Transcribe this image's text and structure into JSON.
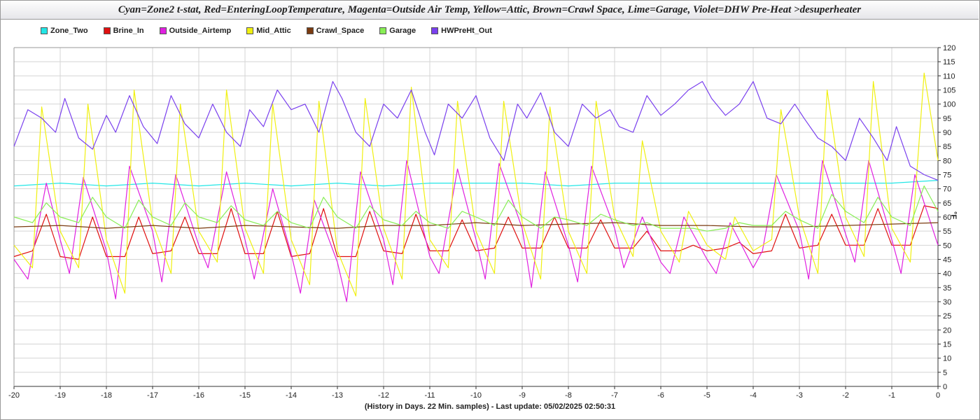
{
  "title": "Cyan=Zone2 t-stat, Red=EnteringLoopTemperature, Magenta=Outside Air Temp, Yellow=Attic, Brown=Crawl Space, Lime=Garage, Violet=DHW Pre-Heat >desuperheater",
  "xlabel": "(History in Days. 22 Min. samples) - Last update: 05/02/2025 02:50:31",
  "ylabel": "°F",
  "chart_data": {
    "type": "line",
    "xlim": [
      -20,
      0
    ],
    "ylim": [
      0,
      120
    ],
    "x_ticks": [
      -20,
      -19,
      -18,
      -17,
      -16,
      -15,
      -14,
      -13,
      -12,
      -11,
      -10,
      -9,
      -8,
      -7,
      -6,
      -5,
      -4,
      -3,
      -2,
      -1,
      0
    ],
    "y_ticks": [
      0,
      5,
      10,
      15,
      20,
      25,
      30,
      35,
      40,
      45,
      50,
      55,
      60,
      65,
      70,
      75,
      80,
      85,
      90,
      95,
      100,
      105,
      110,
      115,
      120
    ],
    "grid": true,
    "legend_position": "top-left",
    "series": [
      {
        "name": "Zone_Two",
        "color": "#22e6e6",
        "x": [
          -20,
          -19,
          -18,
          -17,
          -16,
          -15,
          -14,
          -13,
          -12,
          -11,
          -10,
          -9,
          -8,
          -7,
          -6,
          -5,
          -4,
          -3,
          -2,
          -1,
          0
        ],
        "y": [
          71,
          72,
          71,
          72,
          71,
          72,
          71,
          72,
          71,
          72,
          72,
          72,
          71,
          72,
          72,
          72,
          72,
          72,
          72,
          72,
          73
        ]
      },
      {
        "name": "Brine_In",
        "color": "#e01010",
        "x": [
          -20,
          -19.6,
          -19.3,
          -19,
          -18.6,
          -18.3,
          -18,
          -17.6,
          -17.3,
          -17,
          -16.6,
          -16.3,
          -16,
          -15.6,
          -15.3,
          -15,
          -14.6,
          -14.3,
          -14,
          -13.6,
          -13.3,
          -13,
          -12.6,
          -12.3,
          -12,
          -11.6,
          -11.3,
          -11,
          -10.6,
          -10.3,
          -10,
          -9.6,
          -9.3,
          -9,
          -8.6,
          -8.3,
          -8,
          -7.6,
          -7.3,
          -7,
          -6.6,
          -6.3,
          -6,
          -5.6,
          -5.3,
          -5,
          -4.6,
          -4.3,
          -4,
          -3.6,
          -3.3,
          -3,
          -2.6,
          -2.3,
          -2,
          -1.6,
          -1.3,
          -1,
          -0.6,
          -0.3,
          0
        ],
        "y": [
          46,
          48,
          61,
          46,
          45,
          60,
          46,
          46,
          60,
          47,
          48,
          60,
          47,
          47,
          63,
          47,
          47,
          62,
          46,
          47,
          63,
          46,
          46,
          62,
          48,
          47,
          61,
          48,
          48,
          59,
          48,
          49,
          60,
          49,
          49,
          60,
          49,
          49,
          59,
          49,
          49,
          55,
          48,
          48,
          50,
          48,
          49,
          51,
          47,
          48,
          61,
          49,
          50,
          61,
          50,
          50,
          63,
          50,
          50,
          64,
          63
        ]
      },
      {
        "name": "Outside_Airtemp",
        "color": "#e020e0",
        "x": [
          -20,
          -19.7,
          -19.3,
          -19,
          -18.8,
          -18.5,
          -18,
          -17.8,
          -17.5,
          -17,
          -16.8,
          -16.5,
          -16,
          -15.8,
          -15.4,
          -15,
          -14.8,
          -14.4,
          -14,
          -13.8,
          -13.5,
          -13,
          -12.8,
          -12.5,
          -12,
          -11.8,
          -11.5,
          -11,
          -10.8,
          -10.4,
          -10,
          -9.8,
          -9.5,
          -9,
          -8.8,
          -8.5,
          -8,
          -7.8,
          -7.5,
          -7,
          -6.8,
          -6.4,
          -6,
          -5.8,
          -5.5,
          -5,
          -4.8,
          -4.5,
          -4,
          -3.8,
          -3.5,
          -3,
          -2.8,
          -2.5,
          -2,
          -1.8,
          -1.5,
          -1,
          -0.8,
          -0.5,
          0
        ],
        "y": [
          45,
          38,
          72,
          52,
          40,
          74,
          48,
          31,
          78,
          55,
          37,
          75,
          50,
          42,
          76,
          52,
          38,
          70,
          47,
          33,
          66,
          44,
          30,
          76,
          52,
          36,
          80,
          46,
          40,
          77,
          52,
          38,
          79,
          56,
          35,
          76,
          50,
          37,
          78,
          56,
          42,
          60,
          44,
          40,
          60,
          45,
          40,
          58,
          42,
          48,
          75,
          55,
          38,
          80,
          54,
          44,
          80,
          52,
          40,
          75,
          50
        ]
      },
      {
        "name": "Mid_Attic",
        "color": "#f0f010",
        "x": [
          -20,
          -19.6,
          -19.4,
          -19,
          -18.6,
          -18.4,
          -18,
          -17.6,
          -17.4,
          -17,
          -16.6,
          -16.4,
          -16,
          -15.6,
          -15.4,
          -15,
          -14.6,
          -14.4,
          -14,
          -13.6,
          -13.4,
          -13,
          -12.6,
          -12.4,
          -12,
          -11.6,
          -11.4,
          -11,
          -10.6,
          -10.4,
          -10,
          -9.6,
          -9.4,
          -9,
          -8.6,
          -8.4,
          -8,
          -7.6,
          -7.4,
          -7,
          -6.6,
          -6.4,
          -6,
          -5.6,
          -5.4,
          -5,
          -4.6,
          -4.4,
          -4,
          -3.6,
          -3.4,
          -3,
          -2.6,
          -2.4,
          -2,
          -1.6,
          -1.4,
          -1,
          -0.6,
          -0.3,
          0
        ],
        "y": [
          50,
          42,
          99,
          55,
          42,
          100,
          52,
          33,
          105,
          58,
          40,
          100,
          55,
          44,
          105,
          56,
          40,
          100,
          52,
          36,
          101,
          48,
          32,
          102,
          56,
          38,
          106,
          52,
          42,
          101,
          55,
          40,
          101,
          58,
          38,
          99,
          55,
          40,
          101,
          60,
          46,
          87,
          55,
          44,
          62,
          50,
          45,
          60,
          48,
          52,
          98,
          60,
          40,
          105,
          60,
          46,
          108,
          56,
          44,
          111,
          80
        ]
      },
      {
        "name": "Crawl_Space",
        "color": "#7a3a10",
        "x": [
          -20,
          -19,
          -18,
          -17,
          -16,
          -15,
          -14,
          -13,
          -12,
          -11,
          -10,
          -9,
          -8,
          -7,
          -6,
          -5,
          -4,
          -3,
          -2,
          -1,
          0
        ],
        "y": [
          56.5,
          57,
          56,
          57,
          56,
          57,
          56.5,
          56,
          57,
          57,
          58,
          57,
          57.5,
          58,
          57,
          57,
          56.5,
          56.5,
          57,
          57.5,
          58
        ]
      },
      {
        "name": "Garage",
        "color": "#88ee55",
        "x": [
          -20,
          -19.6,
          -19.3,
          -19,
          -18.6,
          -18.3,
          -18,
          -17.6,
          -17.3,
          -17,
          -16.6,
          -16.3,
          -16,
          -15.6,
          -15.3,
          -15,
          -14.6,
          -14.3,
          -14,
          -13.6,
          -13.3,
          -13,
          -12.6,
          -12.3,
          -12,
          -11.6,
          -11.3,
          -11,
          -10.6,
          -10.3,
          -10,
          -9.6,
          -9.3,
          -9,
          -8.6,
          -8.3,
          -8,
          -7.6,
          -7.3,
          -7,
          -6.6,
          -6.3,
          -6,
          -5.6,
          -5.3,
          -5,
          -4.6,
          -4.3,
          -4,
          -3.6,
          -3.3,
          -3,
          -2.6,
          -2.3,
          -2,
          -1.6,
          -1.3,
          -1,
          -0.6,
          -0.3,
          0
        ],
        "y": [
          60,
          58,
          65,
          60,
          58,
          67,
          60,
          56,
          66,
          60,
          57,
          65,
          60,
          58,
          64,
          59,
          57,
          62,
          58,
          56,
          67,
          60,
          56,
          64,
          59,
          57,
          62,
          58,
          56,
          62,
          60,
          57,
          66,
          60,
          56,
          60,
          59,
          57,
          61,
          59,
          57,
          58,
          56,
          56,
          56,
          55,
          56,
          58,
          57,
          57,
          62,
          59,
          56,
          68,
          62,
          58,
          67,
          60,
          57,
          71,
          62
        ]
      },
      {
        "name": "HWPreHt_Out",
        "color": "#7a40ee",
        "x": [
          -20,
          -19.7,
          -19.4,
          -19.1,
          -18.9,
          -18.6,
          -18.3,
          -18,
          -17.8,
          -17.5,
          -17.2,
          -16.9,
          -16.6,
          -16.3,
          -16,
          -15.7,
          -15.4,
          -15.1,
          -14.9,
          -14.6,
          -14.3,
          -14,
          -13.7,
          -13.4,
          -13.1,
          -12.9,
          -12.6,
          -12.3,
          -12,
          -11.7,
          -11.4,
          -11.1,
          -10.9,
          -10.6,
          -10.3,
          -10,
          -9.7,
          -9.4,
          -9.1,
          -8.9,
          -8.6,
          -8.3,
          -8,
          -7.7,
          -7.4,
          -7.1,
          -6.9,
          -6.6,
          -6.3,
          -6,
          -5.7,
          -5.4,
          -5.1,
          -4.9,
          -4.6,
          -4.3,
          -4,
          -3.7,
          -3.4,
          -3.1,
          -2.9,
          -2.6,
          -2.3,
          -2,
          -1.7,
          -1.4,
          -1.1,
          -0.9,
          -0.6,
          -0.3,
          0
        ],
        "y": [
          85,
          98,
          95,
          90,
          102,
          88,
          84,
          96,
          90,
          103,
          92,
          86,
          103,
          93,
          88,
          100,
          90,
          85,
          98,
          92,
          105,
          98,
          100,
          90,
          108,
          102,
          90,
          85,
          100,
          95,
          105,
          90,
          82,
          100,
          95,
          103,
          88,
          80,
          100,
          95,
          104,
          90,
          85,
          100,
          95,
          98,
          92,
          90,
          103,
          96,
          100,
          105,
          108,
          102,
          96,
          100,
          108,
          95,
          93,
          100,
          95,
          88,
          85,
          80,
          95,
          88,
          80,
          92,
          78,
          75,
          73
        ]
      }
    ]
  }
}
